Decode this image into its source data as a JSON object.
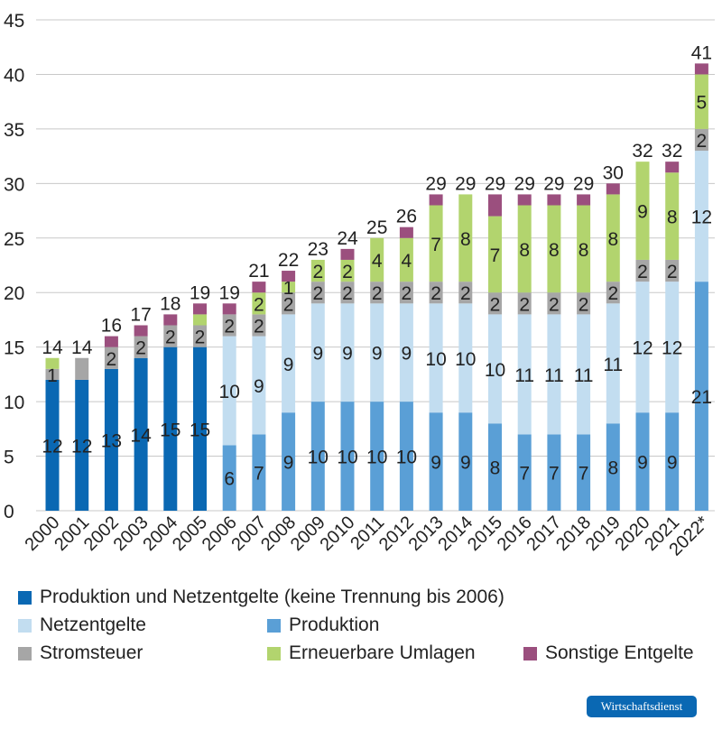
{
  "chart_data": {
    "type": "bar",
    "stacked": true,
    "categories": [
      "2000",
      "2001",
      "2002",
      "2003",
      "2004",
      "2005",
      "2006",
      "2007",
      "2008",
      "2009",
      "2010",
      "2011",
      "2012",
      "2013",
      "2014",
      "2015",
      "2016",
      "2017",
      "2018",
      "2019",
      "2020",
      "2021",
      "2022*"
    ],
    "series": [
      {
        "name": "Produktion und Netzentgelte (keine Trennung bis 2006)",
        "color": "#0a68b3",
        "values": [
          12,
          12,
          13,
          14,
          15,
          15,
          0,
          0,
          0,
          0,
          0,
          0,
          0,
          0,
          0,
          0,
          0,
          0,
          0,
          0,
          0,
          0,
          0
        ],
        "labels": [
          "12",
          "12",
          "13",
          "14",
          "15",
          "15",
          "",
          "",
          "",
          "",
          "",
          "",
          "",
          "",
          "",
          "",
          "",
          "",
          "",
          "",
          "",
          "",
          ""
        ]
      },
      {
        "name": "Produktion",
        "color": "#5a9fd6",
        "values": [
          0,
          0,
          0,
          0,
          0,
          0,
          6,
          7,
          9,
          10,
          10,
          10,
          10,
          9,
          9,
          8,
          7,
          7,
          7,
          8,
          9,
          9,
          21
        ],
        "labels": [
          "",
          "",
          "",
          "",
          "",
          "",
          "6",
          "7",
          "9",
          "10",
          "10",
          "10",
          "10",
          "9",
          "9",
          "8",
          "7",
          "7",
          "7",
          "8",
          "9",
          "9",
          "21"
        ]
      },
      {
        "name": "Netzentgelte",
        "color": "#c2ddf0",
        "values": [
          0,
          0,
          0,
          0,
          0,
          0,
          10,
          9,
          9,
          9,
          9,
          9,
          9,
          10,
          10,
          10,
          11,
          11,
          11,
          11,
          12,
          12,
          12
        ],
        "labels": [
          "",
          "",
          "",
          "",
          "",
          "",
          "10",
          "9",
          "9",
          "9",
          "9",
          "9",
          "9",
          "10",
          "10",
          "10",
          "11",
          "11",
          "11",
          "11",
          "12",
          "12",
          "12"
        ]
      },
      {
        "name": "Stromsteuer",
        "color": "#a6a6a6",
        "values": [
          1,
          2,
          2,
          2,
          2,
          2,
          2,
          2,
          2,
          2,
          2,
          2,
          2,
          2,
          2,
          2,
          2,
          2,
          2,
          2,
          2,
          2,
          2
        ],
        "labels": [
          "1",
          "",
          "2",
          "2",
          "2",
          "2",
          "2",
          "2",
          "2",
          "2",
          "2",
          "2",
          "2",
          "2",
          "2",
          "2",
          "2",
          "2",
          "2",
          "2",
          "2",
          "2",
          "2"
        ]
      },
      {
        "name": "Erneuerbare Umlagen",
        "color": "#b2d46e",
        "values": [
          1,
          0,
          0,
          0,
          0,
          1,
          0,
          2,
          1,
          2,
          2,
          4,
          4,
          7,
          8,
          7,
          8,
          8,
          8,
          8,
          9,
          8,
          5
        ],
        "labels": [
          "",
          "",
          "",
          "",
          "",
          "",
          "",
          "2",
          "1",
          "2",
          "2",
          "4",
          "4",
          "7",
          "8",
          "7",
          "8",
          "8",
          "8",
          "8",
          "9",
          "8",
          "5"
        ]
      },
      {
        "name": "Sonstige Entgelte",
        "color": "#9b4f7e",
        "values": [
          0,
          0,
          1,
          1,
          1,
          1,
          1,
          1,
          1,
          0,
          1,
          0,
          1,
          1,
          0,
          2,
          1,
          1,
          1,
          1,
          0,
          1,
          1
        ],
        "labels": [
          "",
          "",
          "",
          "",
          "",
          "",
          "",
          "",
          "",
          "",
          "",
          "",
          "",
          "",
          "",
          "",
          "",
          "",
          "",
          "",
          "",
          "",
          ""
        ]
      }
    ],
    "totals": [
      "14",
      "14",
      "16",
      "17",
      "18",
      "19",
      "19",
      "21",
      "22",
      "23",
      "24",
      "25",
      "26",
      "29",
      "29",
      "29",
      "29",
      "29",
      "29",
      "30",
      "32",
      "32",
      "41"
    ],
    "ylim": [
      0,
      45
    ],
    "yticks": [
      "0",
      "5",
      "10",
      "15",
      "20",
      "25",
      "30",
      "35",
      "40",
      "45"
    ],
    "grid": true,
    "legend_position": "bottom"
  },
  "legend": [
    {
      "label": "Produktion und Netzentgelte (keine Trennung bis 2006)",
      "color": "#0a68b3"
    },
    {
      "label": "Netzentgelte",
      "color": "#c2ddf0"
    },
    {
      "label": "Produktion",
      "color": "#5a9fd6"
    },
    {
      "label": "Stromsteuer",
      "color": "#a6a6a6"
    },
    {
      "label": "Erneuerbare Umlagen",
      "color": "#b2d46e"
    },
    {
      "label": "Sonstige Entgelte",
      "color": "#9b4f7e"
    }
  ],
  "brand": {
    "label": "Wirtschaftsdienst",
    "color": "#0a68b3"
  }
}
